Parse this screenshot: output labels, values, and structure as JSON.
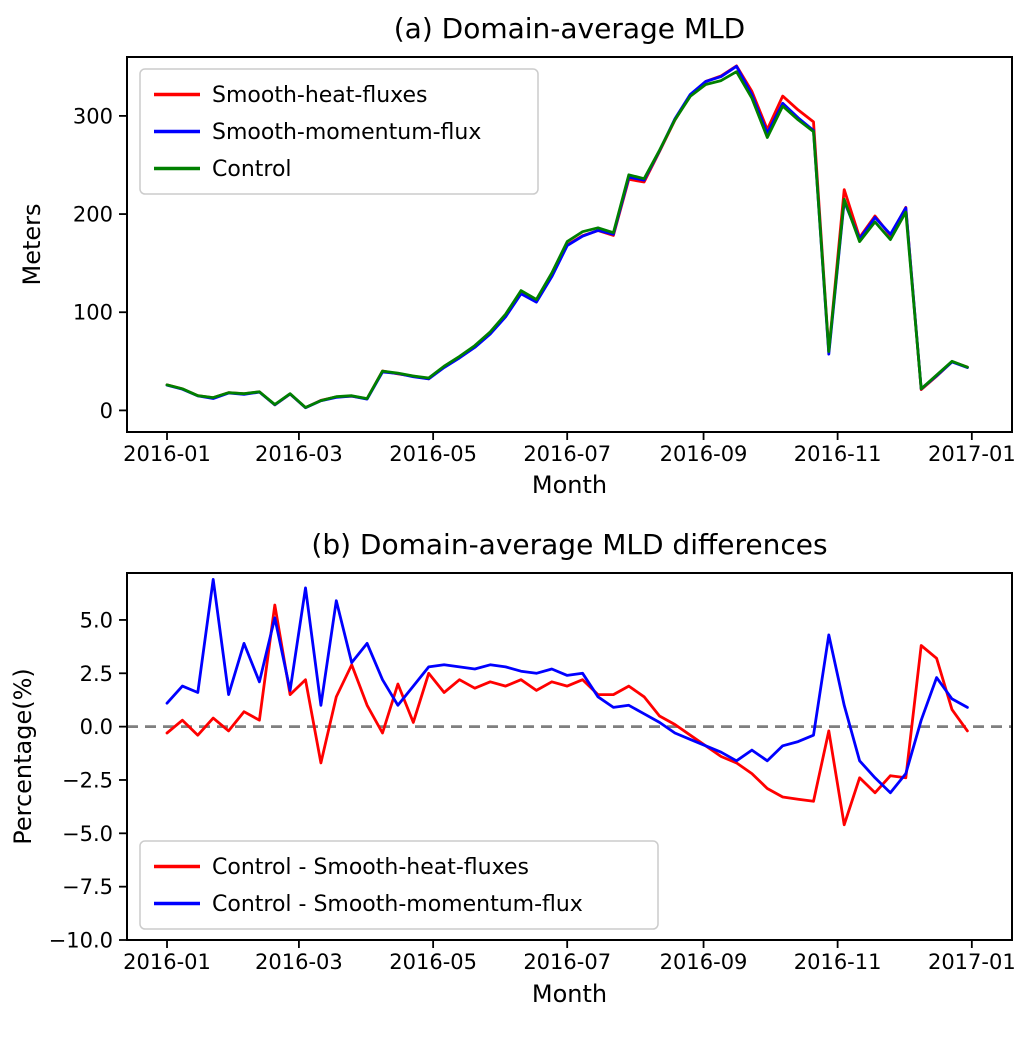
{
  "figure": {
    "background": "#ffffff",
    "text_color": "#000000"
  },
  "chart_data": [
    {
      "id": "panel-a",
      "type": "line",
      "title": "(a) Domain-average MLD",
      "xlabel": "Month",
      "ylabel": "Meters",
      "x_sampling": "weekly points, index = weeks since 2016-01-01",
      "grid": false,
      "xlim": [
        -2.6,
        54.9
      ],
      "ylim": [
        -22,
        360
      ],
      "x_ticks": [
        {
          "label": "2016-01",
          "pos": 0
        },
        {
          "label": "2016-03",
          "pos": 8.57
        },
        {
          "label": "2016-05",
          "pos": 17.29
        },
        {
          "label": "2016-07",
          "pos": 26.0
        },
        {
          "label": "2016-09",
          "pos": 34.86
        },
        {
          "label": "2016-11",
          "pos": 43.57
        },
        {
          "label": "2017-01",
          "pos": 52.29
        }
      ],
      "y_ticks": [
        {
          "label": "0",
          "pos": 0
        },
        {
          "label": "100",
          "pos": 100
        },
        {
          "label": "200",
          "pos": 200
        },
        {
          "label": "300",
          "pos": 300
        }
      ],
      "legend": {
        "location": "upper-left",
        "entries": [
          "Smooth-heat-fluxes",
          "Smooth-momentum-flux",
          "Control"
        ]
      },
      "series": [
        {
          "name": "Smooth-heat-fluxes",
          "color": "#ff0000",
          "values": [
            26.1,
            21.9,
            15.1,
            12.9,
            18.0,
            16.9,
            18.9,
            5.7,
            16.7,
            2.9,
            10.2,
            13.8,
            14.6,
            11.9,
            40.1,
            37.2,
            34.9,
            32.2,
            44.3,
            53.8,
            64.8,
            78.3,
            96.1,
            119.3,
            111.1,
            137.1,
            168.7,
            178.0,
            183.2,
            178.3,
            235.4,
            232.7,
            263.7,
            295.7,
            321.3,
            335.0,
            340.7,
            350.9,
            325.0,
            286.1,
            320.2,
            306.1,
            293.9,
            60.1,
            224.9,
            176.1,
            198.0,
            178.0,
            206.8,
            21.2,
            34.8,
            49.6,
            44.1
          ]
        },
        {
          "name": "Smooth-momentum-flux",
          "color": "#0000ff",
          "values": [
            25.7,
            21.6,
            14.8,
            12.1,
            17.7,
            16.3,
            18.6,
            5.7,
            16.7,
            2.8,
            9.9,
            13.2,
            14.6,
            11.5,
            39.1,
            37.6,
            34.3,
            32.1,
            43.7,
            53.5,
            64.2,
            77.7,
            95.3,
            118.8,
            110.2,
            136.2,
            167.9,
            177.5,
            183.4,
            179.4,
            237.6,
            234.6,
            264.5,
            296.9,
            321.9,
            335.0,
            340.0,
            350.5,
            321.5,
            282.4,
            312.8,
            298.1,
            285.1,
            57.4,
            212.9,
            174.8,
            196.6,
            179.4,
            206.4,
            21.9,
            35.2,
            49.4,
            43.6
          ]
        },
        {
          "name": "Control",
          "color": "#008000",
          "values": [
            26,
            22,
            15,
            13,
            18,
            17,
            19,
            6,
            17,
            3,
            10,
            14,
            15,
            12,
            40,
            38,
            35,
            33,
            45,
            55,
            66,
            80,
            98,
            122,
            113,
            140,
            172,
            182,
            186,
            181,
            240,
            236,
            265,
            296,
            320,
            332,
            336,
            345,
            318,
            278,
            310,
            296,
            284,
            60,
            215,
            172,
            192,
            174,
            202,
            22,
            36,
            50,
            44
          ]
        }
      ]
    },
    {
      "id": "panel-b",
      "type": "line",
      "title": "(b) Domain-average MLD differences",
      "xlabel": "Month",
      "ylabel": "Percentage(%)",
      "x_sampling": "weekly points, index = weeks since 2016-01-01",
      "grid": false,
      "xlim": [
        -2.6,
        54.9
      ],
      "ylim": [
        -10,
        7.2
      ],
      "x_ticks": [
        {
          "label": "2016-01",
          "pos": 0
        },
        {
          "label": "2016-03",
          "pos": 8.57
        },
        {
          "label": "2016-05",
          "pos": 17.29
        },
        {
          "label": "2016-07",
          "pos": 26.0
        },
        {
          "label": "2016-09",
          "pos": 34.86
        },
        {
          "label": "2016-11",
          "pos": 43.57
        },
        {
          "label": "2017-01",
          "pos": 52.29
        }
      ],
      "y_ticks": [
        {
          "label": "−10.0",
          "pos": -10
        },
        {
          "label": "−7.5",
          "pos": -7.5
        },
        {
          "label": "−5.0",
          "pos": -5
        },
        {
          "label": "−2.5",
          "pos": -2.5
        },
        {
          "label": "0.0",
          "pos": 0
        },
        {
          "label": "2.5",
          "pos": 2.5
        },
        {
          "label": "5.0",
          "pos": 5
        }
      ],
      "zero_line": {
        "color": "#7f7f7f",
        "style": "dashed",
        "pos": 0
      },
      "legend": {
        "location": "lower-left",
        "entries": [
          "Control - Smooth-heat-fluxes",
          "Control - Smooth-momentum-flux"
        ]
      },
      "series": [
        {
          "name": "Control - Smooth-heat-fluxes",
          "color": "#ff0000",
          "values": [
            -0.3,
            0.3,
            -0.4,
            0.4,
            -0.2,
            0.7,
            0.3,
            5.7,
            1.5,
            2.2,
            -1.7,
            1.4,
            2.9,
            1.0,
            -0.3,
            2.0,
            0.2,
            2.5,
            1.6,
            2.2,
            1.8,
            2.1,
            1.9,
            2.2,
            1.7,
            2.1,
            1.9,
            2.2,
            1.5,
            1.5,
            1.9,
            1.4,
            0.5,
            0.1,
            -0.4,
            -0.9,
            -1.4,
            -1.7,
            -2.2,
            -2.9,
            -3.3,
            -3.4,
            -3.5,
            -0.2,
            -4.6,
            -2.4,
            -3.1,
            -2.3,
            -2.4,
            3.8,
            3.2,
            0.8,
            -0.2
          ]
        },
        {
          "name": "Control - Smooth-momentum-flux",
          "color": "#0000ff",
          "values": [
            1.1,
            1.9,
            1.6,
            6.9,
            1.5,
            3.9,
            2.1,
            5.1,
            1.7,
            6.5,
            1.0,
            5.9,
            3.0,
            3.9,
            2.2,
            1.0,
            1.9,
            2.8,
            2.9,
            2.8,
            2.7,
            2.9,
            2.8,
            2.6,
            2.5,
            2.7,
            2.4,
            2.5,
            1.4,
            0.9,
            1.0,
            0.6,
            0.2,
            -0.3,
            -0.6,
            -0.9,
            -1.2,
            -1.6,
            -1.1,
            -1.6,
            -0.9,
            -0.7,
            -0.4,
            4.3,
            1.0,
            -1.6,
            -2.4,
            -3.1,
            -2.2,
            0.3,
            2.3,
            1.3,
            0.9
          ]
        }
      ]
    }
  ]
}
